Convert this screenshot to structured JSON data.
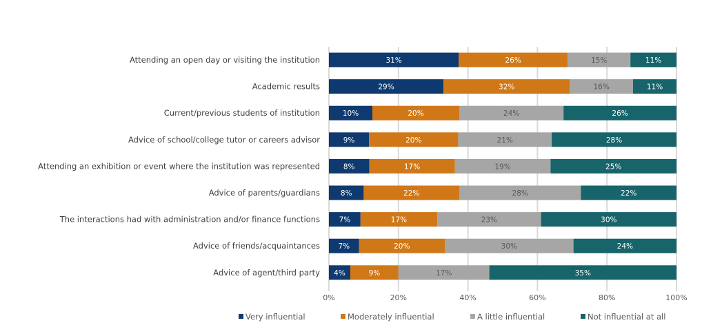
{
  "chart_data": {
    "type": "bar",
    "orientation": "horizontal",
    "stacked": "percent",
    "categories": [
      "Attending an open day or visiting the institution",
      "Academic results",
      "Current/previous students of institution",
      "Advice of school/college tutor or careers advisor",
      "Attending an exhibition or event where the institution was represented",
      "Advice of parents/guardians",
      "The interactions had with administration and/or finance functions",
      "Advice of friends/acquaintances",
      "Advice of agent/third party"
    ],
    "series": [
      {
        "name": "Very influential",
        "color": "#0e3a6f",
        "label_color": "#ffffff",
        "values": [
          31,
          29,
          10,
          9,
          8,
          8,
          7,
          7,
          4
        ]
      },
      {
        "name": "Moderately influential",
        "color": "#d07818",
        "label_color": "#ffffff",
        "values": [
          26,
          32,
          20,
          20,
          17,
          22,
          17,
          20,
          9
        ]
      },
      {
        "name": "A little influential",
        "color": "#a6a6a6",
        "label_color": "#595959",
        "values": [
          15,
          16,
          24,
          21,
          19,
          28,
          23,
          30,
          17
        ]
      },
      {
        "name": "Not influential at all",
        "color": "#17646b",
        "label_color": "#ffffff",
        "values": [
          11,
          11,
          26,
          28,
          25,
          22,
          30,
          24,
          35
        ]
      }
    ],
    "xticks": [
      "0%",
      "20%",
      "40%",
      "60%",
      "80%",
      "100%"
    ],
    "xlim": [
      0,
      100
    ],
    "grid": true,
    "legend": "bottom",
    "title": "",
    "xlabel": "",
    "ylabel": ""
  }
}
